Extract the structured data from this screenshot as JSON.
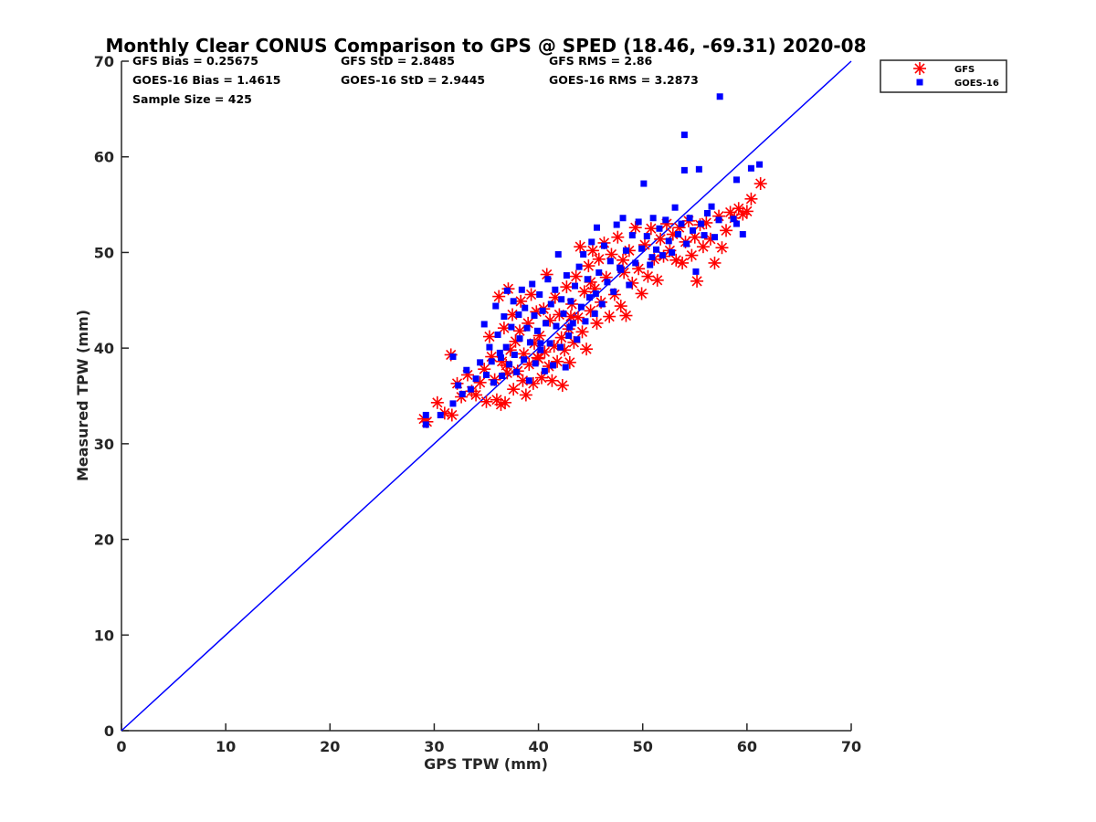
{
  "chart_data": {
    "type": "scatter",
    "title": "Monthly Clear CONUS Comparison to GPS @ SPED (18.46, -69.31) 2020-08",
    "xlabel": "GPS TPW (mm)",
    "ylabel": "Measured TPW (mm)",
    "xlim": [
      0,
      70
    ],
    "ylim": [
      0,
      70
    ],
    "xticks": [
      "0",
      "10",
      "20",
      "30",
      "40",
      "50",
      "60",
      "70"
    ],
    "yticks": [
      "0",
      "10",
      "20",
      "30",
      "40",
      "50",
      "60",
      "70"
    ],
    "grid": false,
    "legend_position": "top-right, outside plot",
    "reference_line": {
      "type": "1:1",
      "x": [
        0,
        70
      ],
      "y": [
        0,
        70
      ],
      "color": "#0000ff"
    },
    "stats": [
      [
        "GFS Bias = 0.25675",
        "GFS StD = 2.8485",
        "GFS RMS = 2.86"
      ],
      [
        "GOES-16 Bias = 1.4615",
        "GOES-16 StD = 2.9445",
        "GOES-16 RMS = 3.2873"
      ],
      [
        "Sample Size = 425"
      ]
    ],
    "series": [
      {
        "name": "GFS",
        "marker": "asterisk",
        "color": "#ff0000",
        "points": [
          [
            29.0,
            32.6
          ],
          [
            29.3,
            32.3
          ],
          [
            30.3,
            34.3
          ],
          [
            31.0,
            33.2
          ],
          [
            31.7,
            33.0
          ],
          [
            31.6,
            39.3
          ],
          [
            32.2,
            36.3
          ],
          [
            32.6,
            34.9
          ],
          [
            33.2,
            37.2
          ],
          [
            33.6,
            35.5
          ],
          [
            34.0,
            35.1
          ],
          [
            34.4,
            36.4
          ],
          [
            34.8,
            37.8
          ],
          [
            35.0,
            34.4
          ],
          [
            35.3,
            41.2
          ],
          [
            35.5,
            39.1
          ],
          [
            35.8,
            36.7
          ],
          [
            36.0,
            34.6
          ],
          [
            36.2,
            45.4
          ],
          [
            36.4,
            34.1
          ],
          [
            36.5,
            38.6
          ],
          [
            36.7,
            42.1
          ],
          [
            36.8,
            34.3
          ],
          [
            37.0,
            37.4
          ],
          [
            37.1,
            46.2
          ],
          [
            37.3,
            39.8
          ],
          [
            37.5,
            43.5
          ],
          [
            37.6,
            35.7
          ],
          [
            37.8,
            40.7
          ],
          [
            38.0,
            37.6
          ],
          [
            38.2,
            41.8
          ],
          [
            38.3,
            44.9
          ],
          [
            38.5,
            36.6
          ],
          [
            38.6,
            39.4
          ],
          [
            38.8,
            35.1
          ],
          [
            39.0,
            42.6
          ],
          [
            39.1,
            38.3
          ],
          [
            39.3,
            45.6
          ],
          [
            39.5,
            36.3
          ],
          [
            39.6,
            40.5
          ],
          [
            39.8,
            43.8
          ],
          [
            40.0,
            38.9
          ],
          [
            40.1,
            41.3
          ],
          [
            40.3,
            36.9
          ],
          [
            40.5,
            44.1
          ],
          [
            40.6,
            39.6
          ],
          [
            40.8,
            47.7
          ],
          [
            41.0,
            38.1
          ],
          [
            41.1,
            42.9
          ],
          [
            41.3,
            36.6
          ],
          [
            41.5,
            40.2
          ],
          [
            41.6,
            45.3
          ],
          [
            41.8,
            38.6
          ],
          [
            42.0,
            43.5
          ],
          [
            42.2,
            41.1
          ],
          [
            42.3,
            36.1
          ],
          [
            42.5,
            39.8
          ],
          [
            42.7,
            46.4
          ],
          [
            42.9,
            42.0
          ],
          [
            43.0,
            38.5
          ],
          [
            43.2,
            44.6
          ],
          [
            43.4,
            40.6
          ],
          [
            43.6,
            47.5
          ],
          [
            43.8,
            43.2
          ],
          [
            44.0,
            50.6
          ],
          [
            44.2,
            41.7
          ],
          [
            44.4,
            45.9
          ],
          [
            44.6,
            39.9
          ],
          [
            44.8,
            48.6
          ],
          [
            45.0,
            43.9
          ],
          [
            45.2,
            50.2
          ],
          [
            45.4,
            46.2
          ],
          [
            45.6,
            42.6
          ],
          [
            45.8,
            49.3
          ],
          [
            46.0,
            44.8
          ],
          [
            46.3,
            51.0
          ],
          [
            46.5,
            47.4
          ],
          [
            46.8,
            43.3
          ],
          [
            47.0,
            49.8
          ],
          [
            47.3,
            45.6
          ],
          [
            47.6,
            51.6
          ],
          [
            47.9,
            44.4
          ],
          [
            48.2,
            47.9
          ],
          [
            48.4,
            43.4
          ],
          [
            48.7,
            50.2
          ],
          [
            49.0,
            46.8
          ],
          [
            49.3,
            52.6
          ],
          [
            49.6,
            48.3
          ],
          [
            49.9,
            45.7
          ],
          [
            50.2,
            50.8
          ],
          [
            50.5,
            47.5
          ],
          [
            50.8,
            52.5
          ],
          [
            51.1,
            49.3
          ],
          [
            51.4,
            47.1
          ],
          [
            51.7,
            51.4
          ],
          [
            52.0,
            49.6
          ],
          [
            52.3,
            53.0
          ],
          [
            52.6,
            50.2
          ],
          [
            52.9,
            51.9
          ],
          [
            53.2,
            49.2
          ],
          [
            53.5,
            52.6
          ],
          [
            53.8,
            48.9
          ],
          [
            54.1,
            51.1
          ],
          [
            54.4,
            53.3
          ],
          [
            54.7,
            49.7
          ],
          [
            55.0,
            51.6
          ],
          [
            55.2,
            47.0
          ],
          [
            55.5,
            52.9
          ],
          [
            55.8,
            50.6
          ],
          [
            56.1,
            53.1
          ],
          [
            56.5,
            51.4
          ],
          [
            56.9,
            48.9
          ],
          [
            57.3,
            53.8
          ],
          [
            57.6,
            50.5
          ],
          [
            58.0,
            52.3
          ],
          [
            58.4,
            54.2
          ],
          [
            58.8,
            53.6
          ],
          [
            59.2,
            54.6
          ],
          [
            59.6,
            54.0
          ],
          [
            60.0,
            54.3
          ],
          [
            60.4,
            55.6
          ],
          [
            61.3,
            57.2
          ],
          [
            45.0,
            46.9
          ],
          [
            43.1,
            43.3
          ],
          [
            39.9,
            39.0
          ],
          [
            36.9,
            38.2
          ],
          [
            48.1,
            49.2
          ]
        ]
      },
      {
        "name": "GOES-16",
        "marker": "square",
        "color": "#0000ff",
        "points": [
          [
            29.2,
            32.0
          ],
          [
            29.2,
            33.0
          ],
          [
            30.6,
            33.0
          ],
          [
            31.8,
            34.2
          ],
          [
            31.8,
            39.1
          ],
          [
            32.3,
            36.1
          ],
          [
            32.7,
            35.2
          ],
          [
            33.1,
            37.7
          ],
          [
            33.5,
            35.7
          ],
          [
            34.0,
            36.8
          ],
          [
            34.4,
            38.5
          ],
          [
            34.8,
            42.5
          ],
          [
            35.0,
            37.2
          ],
          [
            35.3,
            40.1
          ],
          [
            35.5,
            38.6
          ],
          [
            35.7,
            36.4
          ],
          [
            35.9,
            44.4
          ],
          [
            36.1,
            41.4
          ],
          [
            36.3,
            39.5
          ],
          [
            36.5,
            37.1
          ],
          [
            36.7,
            43.3
          ],
          [
            36.9,
            40.1
          ],
          [
            37.0,
            46.0
          ],
          [
            37.2,
            38.3
          ],
          [
            37.4,
            42.2
          ],
          [
            37.6,
            44.9
          ],
          [
            37.7,
            39.3
          ],
          [
            37.9,
            37.5
          ],
          [
            38.1,
            43.5
          ],
          [
            38.2,
            41.0
          ],
          [
            38.4,
            46.1
          ],
          [
            38.6,
            38.8
          ],
          [
            38.7,
            44.2
          ],
          [
            38.9,
            42.1
          ],
          [
            39.1,
            36.6
          ],
          [
            39.2,
            40.6
          ],
          [
            39.4,
            46.7
          ],
          [
            39.6,
            43.4
          ],
          [
            39.7,
            38.4
          ],
          [
            39.9,
            41.8
          ],
          [
            40.1,
            45.6
          ],
          [
            40.2,
            39.8
          ],
          [
            40.4,
            43.9
          ],
          [
            40.6,
            37.6
          ],
          [
            40.7,
            42.6
          ],
          [
            40.9,
            47.2
          ],
          [
            41.1,
            40.5
          ],
          [
            41.2,
            44.6
          ],
          [
            41.4,
            38.2
          ],
          [
            41.6,
            46.1
          ],
          [
            41.7,
            42.3
          ],
          [
            41.9,
            49.8
          ],
          [
            42.1,
            40.1
          ],
          [
            42.2,
            45.1
          ],
          [
            42.4,
            43.6
          ],
          [
            42.6,
            38.0
          ],
          [
            42.7,
            47.6
          ],
          [
            42.9,
            41.3
          ],
          [
            43.1,
            44.9
          ],
          [
            43.3,
            42.6
          ],
          [
            43.5,
            46.5
          ],
          [
            43.7,
            40.9
          ],
          [
            43.9,
            48.5
          ],
          [
            44.1,
            44.3
          ],
          [
            44.3,
            49.8
          ],
          [
            44.5,
            42.8
          ],
          [
            44.7,
            47.2
          ],
          [
            44.9,
            45.3
          ],
          [
            45.1,
            51.1
          ],
          [
            45.4,
            43.6
          ],
          [
            45.6,
            52.6
          ],
          [
            45.8,
            47.9
          ],
          [
            46.1,
            44.6
          ],
          [
            46.3,
            50.7
          ],
          [
            46.6,
            46.9
          ],
          [
            46.9,
            49.1
          ],
          [
            47.2,
            45.9
          ],
          [
            47.5,
            52.9
          ],
          [
            47.8,
            48.4
          ],
          [
            48.1,
            53.6
          ],
          [
            48.4,
            50.2
          ],
          [
            48.7,
            46.6
          ],
          [
            49.0,
            51.8
          ],
          [
            49.3,
            48.9
          ],
          [
            49.6,
            53.2
          ],
          [
            49.9,
            50.4
          ],
          [
            50.1,
            57.2
          ],
          [
            50.4,
            51.7
          ],
          [
            50.7,
            48.7
          ],
          [
            51.0,
            53.6
          ],
          [
            51.3,
            50.3
          ],
          [
            51.6,
            52.5
          ],
          [
            51.9,
            49.7
          ],
          [
            52.2,
            53.4
          ],
          [
            52.5,
            51.2
          ],
          [
            52.8,
            50.0
          ],
          [
            53.1,
            54.7
          ],
          [
            53.4,
            51.9
          ],
          [
            53.7,
            53.0
          ],
          [
            54.0,
            62.3
          ],
          [
            54.0,
            58.6
          ],
          [
            54.2,
            50.9
          ],
          [
            54.5,
            53.6
          ],
          [
            54.8,
            52.3
          ],
          [
            55.1,
            48.0
          ],
          [
            55.4,
            58.7
          ],
          [
            55.6,
            53.0
          ],
          [
            55.9,
            51.8
          ],
          [
            56.2,
            54.1
          ],
          [
            56.6,
            54.8
          ],
          [
            56.9,
            51.6
          ],
          [
            57.3,
            53.4
          ],
          [
            57.4,
            66.3
          ],
          [
            58.7,
            53.5
          ],
          [
            59.0,
            57.6
          ],
          [
            59.6,
            51.9
          ],
          [
            60.4,
            58.8
          ],
          [
            61.2,
            59.2
          ],
          [
            59.0,
            53.0
          ],
          [
            45.5,
            45.7
          ],
          [
            43.0,
            42.2
          ],
          [
            40.2,
            40.5
          ],
          [
            36.4,
            39.0
          ],
          [
            47.9,
            48.2
          ],
          [
            50.9,
            49.5
          ]
        ]
      }
    ]
  }
}
